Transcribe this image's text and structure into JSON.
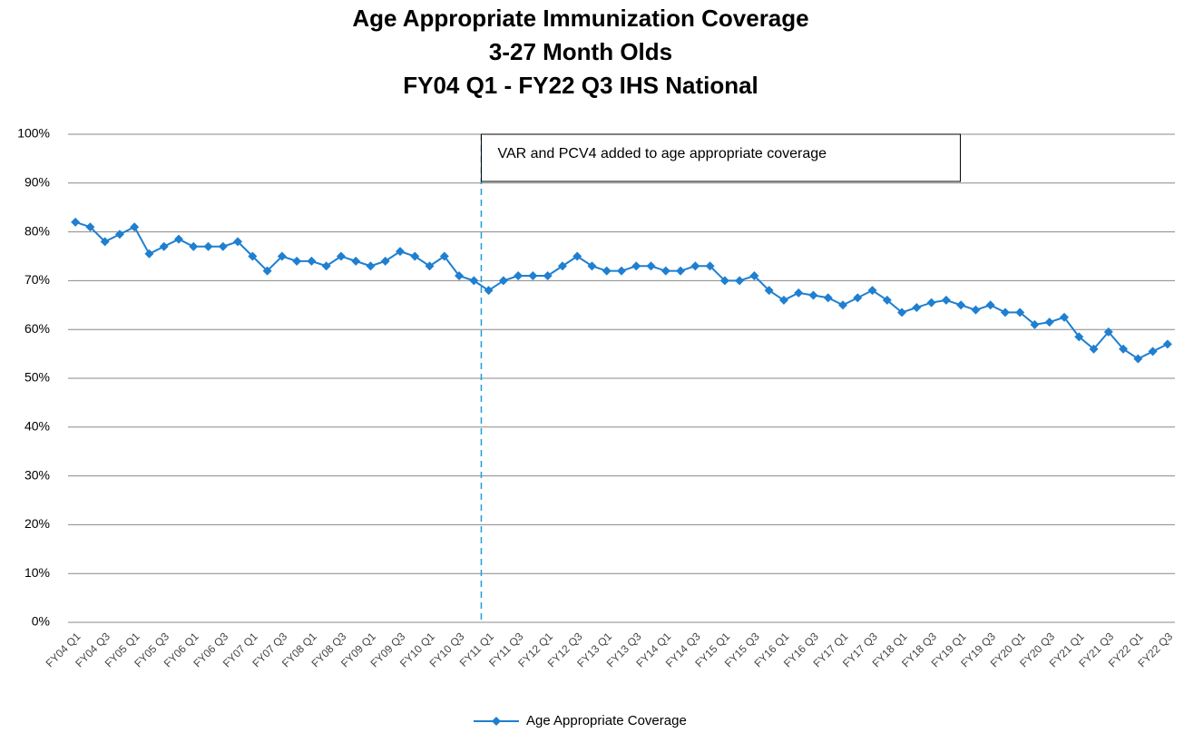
{
  "chart_data": {
    "type": "line",
    "title": "Age Appropriate Immunization Coverage",
    "subtitle": [
      "3-27 Month Olds",
      "FY04 Q1 - FY22 Q3 IHS National"
    ],
    "annotation": "VAR and PCV4 added to age appropriate coverage",
    "categories": [
      "FY04 Q1",
      null,
      "FY04 Q3",
      null,
      "FY05 Q1",
      null,
      "FY05 Q3",
      null,
      "FY06 Q1",
      null,
      "FY06 Q3",
      null,
      "FY07 Q1",
      null,
      "FY07 Q3",
      null,
      "FY08 Q1",
      null,
      "FY08 Q3",
      null,
      "FY09 Q1",
      null,
      "FY09 Q3",
      null,
      "FY10 Q1",
      null,
      "FY10 Q3",
      null,
      "FY11 Q1",
      null,
      "FY11 Q3",
      null,
      "FY12 Q1",
      null,
      "FY12 Q3",
      null,
      "FY13 Q1",
      null,
      "FY13 Q3",
      null,
      "FY14 Q1",
      null,
      "FY14 Q3",
      null,
      "FY15 Q1",
      null,
      "FY15 Q3",
      null,
      "FY16 Q1",
      null,
      "FY16 Q3",
      null,
      "FY17 Q1",
      null,
      "FY17 Q3",
      null,
      "FY18 Q1",
      null,
      "FY18 Q3",
      null,
      "FY19 Q1",
      null,
      "FY19 Q3",
      null,
      "FY20 Q1",
      null,
      "FY20 Q3",
      null,
      "FY21 Q1",
      null,
      "FY21 Q3",
      null,
      "FY22 Q1",
      null,
      "FY22 Q3"
    ],
    "series": [
      {
        "name": "Age Appropriate Coverage",
        "color": "#1f7fd0",
        "values": [
          82,
          81,
          78,
          79.5,
          81,
          75.5,
          77,
          78.5,
          77,
          77,
          77,
          78,
          75,
          72,
          75,
          74,
          74,
          73,
          75,
          74,
          73,
          74,
          76,
          75,
          73,
          75,
          71,
          70,
          68,
          70,
          71,
          71,
          71,
          73,
          75,
          73,
          72,
          72,
          73,
          73,
          72,
          72,
          73,
          73,
          70,
          70,
          71,
          68,
          66,
          67.5,
          67,
          66.5,
          65,
          66.5,
          68,
          66,
          63.5,
          64.5,
          65.5,
          66,
          65,
          64,
          65,
          63.5,
          63.5,
          61,
          61.5,
          62.5,
          58.5,
          56,
          59.5,
          56,
          54,
          55.5,
          57
        ]
      }
    ],
    "ylim": [
      0,
      100
    ],
    "yticks": [
      {
        "value": 0,
        "label": "0%"
      },
      {
        "value": 10,
        "label": "10%"
      },
      {
        "value": 20,
        "label": "20%"
      },
      {
        "value": 30,
        "label": "30%"
      },
      {
        "value": 40,
        "label": "40%"
      },
      {
        "value": 50,
        "label": "50%"
      },
      {
        "value": 60,
        "label": "60%"
      },
      {
        "value": 70,
        "label": "70%"
      },
      {
        "value": 80,
        "label": "80%"
      },
      {
        "value": 90,
        "label": "90%"
      },
      {
        "value": 100,
        "label": "100%"
      }
    ],
    "grid": true,
    "legend": "bottom"
  }
}
